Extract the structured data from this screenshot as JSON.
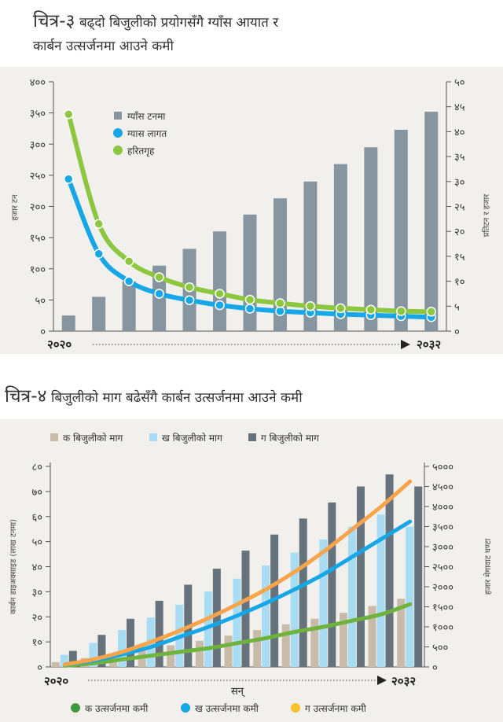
{
  "chart1": {
    "title_prefix": "चित्र-३",
    "title": "बढ्दो बिजुलीको प्रयोगसँगै ग्याँस आयात र कार्बन उत्सर्जनमा आउने कमी",
    "title_line1": "बढ्दो बिजुलीको प्रयोगसँगै ग्याँस आयात र",
    "title_line2": "कार्बन उत्सर्जनमा आउने कमी"
  },
  "chart2": {
    "title_prefix": "चित्र-४",
    "title": "बिजुलीको माग बढेसँगै कार्बन उत्सर्जनमा आउने कमी"
  },
  "colors": {
    "panel_bg": "#f1f0ec",
    "bar_slate": "#8795a0",
    "bar_dark": "#66737d",
    "bar_tan": "#c9bba9",
    "bar_light_blue": "#a8dcf3",
    "line_blue": "#17a6e6",
    "line_green": "#8dc63f",
    "line_dark_green": "#6fb33d",
    "line_orange": "#f7a44a",
    "legend_yellow": "#f9c12c",
    "legend_green_dot": "#3d9a3f"
  },
  "chart_data": [
    {
      "type": "bar+line",
      "categories": [
        "२०२०",
        "",
        "",
        "",
        "",
        "",
        "",
        "",
        "",
        "",
        "",
        "",
        "२०३२"
      ],
      "x_label_start": "२०२०",
      "x_label_end": "२०३२",
      "ylabel_left": "हजार टन",
      "ylabel_right": "प्रतिटन र हजार",
      "y_left_ticks": [
        "०",
        "५०",
        "१००",
        "१५०",
        "२००",
        "२५०",
        "३००",
        "३५०",
        "४००"
      ],
      "y_right_ticks": [
        "०",
        "५",
        "१०",
        "१५",
        "२०",
        "२५",
        "३०",
        "३५",
        "४०",
        "४५",
        "५०"
      ],
      "ylim_left": [
        0,
        400
      ],
      "ylim_right": [
        0,
        50
      ],
      "legend": [
        "ग्याँस टनमा",
        "ग्यास लागत",
        "हरितगृह"
      ],
      "legend_position": "top-left",
      "series": [
        {
          "name": "ग्याँस टनमा",
          "kind": "bar",
          "axis": "left",
          "values": [
            25,
            55,
            80,
            105,
            132,
            160,
            187,
            213,
            240,
            268,
            295,
            323,
            352
          ]
        },
        {
          "name": "ग्यास लागत",
          "kind": "line",
          "axis": "right",
          "values": [
            30.5,
            15.5,
            10.0,
            7.5,
            6.2,
            5.2,
            4.5,
            4.0,
            3.7,
            3.4,
            3.2,
            3.0,
            2.8
          ]
        },
        {
          "name": "हरितगृह",
          "kind": "line",
          "axis": "right",
          "values": [
            43.5,
            21.5,
            14.0,
            10.8,
            8.8,
            7.5,
            6.3,
            5.6,
            5.0,
            4.6,
            4.3,
            4.0,
            3.9
          ]
        }
      ]
    },
    {
      "type": "bar+line",
      "categories": [
        "२०२०",
        "",
        "",
        "",
        "",
        "",
        "",
        "",
        "",
        "",
        "",
        "",
        "२०३२"
      ],
      "x_label_start": "२०२०",
      "x_label_end": "२०३२",
      "xlabel": "सन्",
      "ylabel_left": "कार्बन डाइअक्साइड (लाख टनमा)",
      "ylabel_right": "हजार मेगावाट घण्टा",
      "y_left_ticks": [
        "०",
        "१०",
        "२०",
        "३०",
        "४०",
        "५०",
        "६०",
        "७०",
        "८०"
      ],
      "y_right_ticks": [
        "०",
        "५००",
        "१०००",
        "१५००",
        "२०००",
        "२५००",
        "३०००",
        "३५००",
        "४०००",
        "४५००",
        "५०००"
      ],
      "ylim_left": [
        0,
        80
      ],
      "ylim_right": [
        0,
        5000
      ],
      "bar_legend": [
        "क बिजुलीको माग",
        "ख बिजुलीको माग",
        "ग बिजुलीको माग"
      ],
      "line_legend": [
        "क उत्सर्जनमा कमी",
        "ख उत्सर्जनमा कमी",
        "ग उत्सर्जनमा कमी"
      ],
      "legend_position": "top and bottom",
      "series": [
        {
          "name": "क बिजुलीको माग",
          "kind": "bar",
          "axis": "right",
          "values": [
            120,
            220,
            320,
            430,
            540,
            650,
            780,
            920,
            1060,
            1200,
            1350,
            1520,
            1700
          ]
        },
        {
          "name": "ख बिजुलीको माग",
          "kind": "bar",
          "axis": "right",
          "values": [
            300,
            600,
            920,
            1230,
            1550,
            1880,
            2200,
            2530,
            2850,
            3180,
            3500,
            3800,
            3500
          ]
        },
        {
          "name": "ग बिजुलीको माग",
          "kind": "bar",
          "axis": "right",
          "values": [
            400,
            800,
            1200,
            1650,
            2050,
            2450,
            2900,
            3300,
            3700,
            4100,
            4500,
            4800,
            4500
          ]
        },
        {
          "name": "क उत्सर्जनमा कमी",
          "kind": "line",
          "axis": "left",
          "values": [
            0.5,
            1.5,
            3,
            4.5,
            6,
            7.5,
            9.5,
            11.5,
            14,
            16,
            18.5,
            21,
            25
          ]
        },
        {
          "name": "ख उत्सर्जनमा कमी",
          "kind": "line",
          "axis": "left",
          "values": [
            1,
            2.5,
            5,
            8,
            12,
            16,
            20.5,
            25.5,
            31,
            37,
            44,
            51,
            58
          ]
        },
        {
          "name": "ग उत्सर्जनमा कमी",
          "kind": "line",
          "axis": "left",
          "values": [
            1,
            3,
            6,
            10,
            14.5,
            19.5,
            25,
            31,
            38,
            46,
            55,
            64,
            74
          ]
        }
      ]
    }
  ]
}
